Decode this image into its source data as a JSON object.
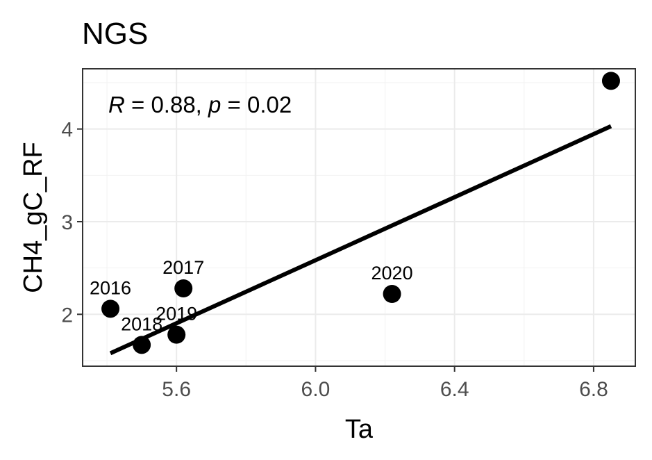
{
  "chart_data": {
    "type": "scatter",
    "title": "NGS",
    "xlabel": "Ta",
    "ylabel": "CH4_gC_RF",
    "xlim": [
      5.33,
      6.92
    ],
    "ylim": [
      1.44,
      4.65
    ],
    "x_ticks": [
      5.6,
      6.0,
      6.4,
      6.8
    ],
    "x_tick_labels": [
      "5.6",
      "6.0",
      "6.4",
      "6.8"
    ],
    "y_ticks": [
      2,
      3,
      4
    ],
    "y_tick_labels": [
      "2",
      "3",
      "4"
    ],
    "grid": true,
    "points": [
      {
        "x": 5.41,
        "y": 2.06,
        "label": "2016"
      },
      {
        "x": 5.62,
        "y": 2.28,
        "label": "2017"
      },
      {
        "x": 5.5,
        "y": 1.67,
        "label": "2018"
      },
      {
        "x": 5.6,
        "y": 1.78,
        "label": "2019"
      },
      {
        "x": 6.22,
        "y": 2.22,
        "label": "2020"
      },
      {
        "x": 6.85,
        "y": 4.52,
        "label": ""
      }
    ],
    "fit_line": {
      "x": [
        5.41,
        6.85
      ],
      "y": [
        1.58,
        4.03
      ]
    },
    "annotation": {
      "r_symbol": "R",
      "r_text": " = 0.88, ",
      "p_symbol": "p",
      "p_text": " = 0.02"
    }
  }
}
